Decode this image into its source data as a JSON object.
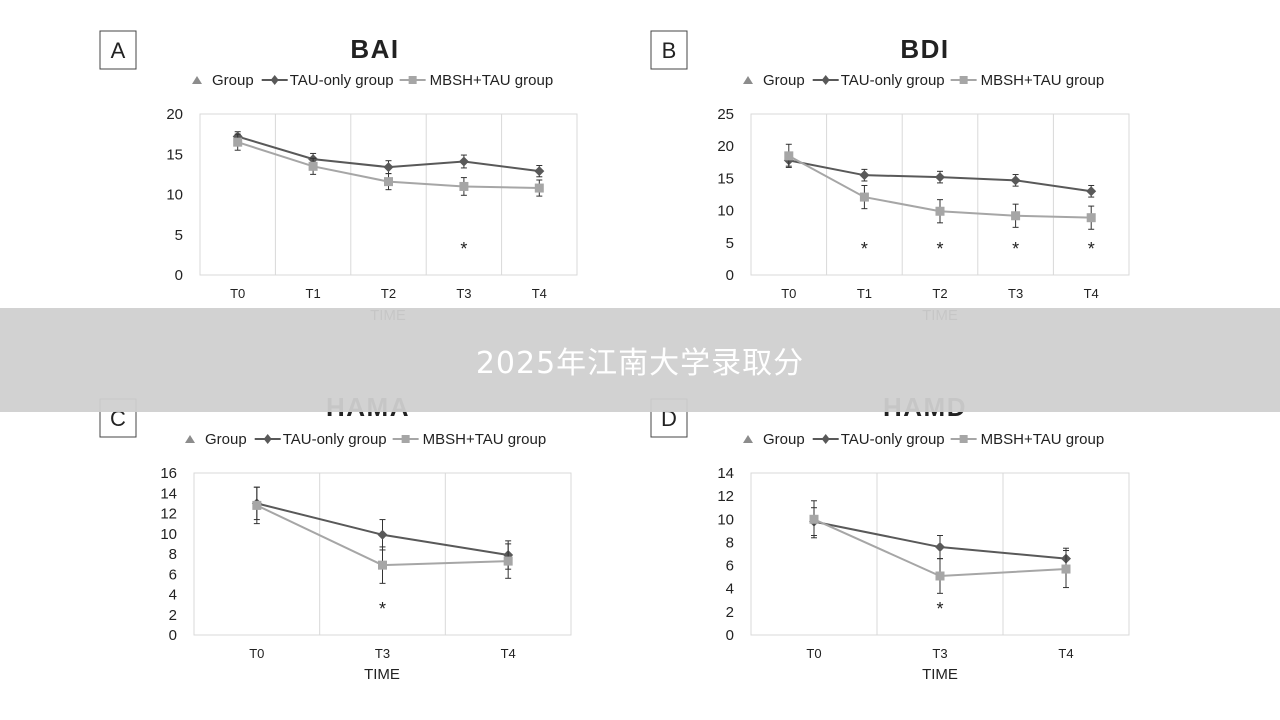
{
  "colors": {
    "tau": "#595959",
    "mbsh": "#a6a6a6",
    "group": "#8c8c8c",
    "grid": "#d9d9d9",
    "text": "#222222"
  },
  "overlay": {
    "text": "2025年江南大学录取分"
  },
  "chart_data": [
    {
      "panel": "A",
      "type": "line",
      "title": "BAI",
      "xlabel": "TIME",
      "categories": [
        "T0",
        "T1",
        "T2",
        "T3",
        "T4"
      ],
      "ylim": [
        0,
        20
      ],
      "yticks": [
        0,
        5,
        10,
        15,
        20
      ],
      "legend": [
        "Group",
        "TAU-only group",
        "MBSH+TAU group"
      ],
      "series": [
        {
          "name": "TAU-only group",
          "values": [
            17.2,
            14.4,
            13.4,
            14.1,
            12.9
          ],
          "errors": [
            0.6,
            0.7,
            0.8,
            0.8,
            0.7
          ]
        },
        {
          "name": "MBSH+TAU group",
          "values": [
            16.5,
            13.5,
            11.6,
            11.0,
            10.8
          ],
          "errors": [
            1.0,
            1.0,
            1.0,
            1.1,
            1.0
          ]
        }
      ],
      "significance": [
        "",
        "",
        "",
        "*",
        ""
      ]
    },
    {
      "panel": "B",
      "type": "line",
      "title": "BDI",
      "xlabel": "TIME",
      "categories": [
        "T0",
        "T1",
        "T2",
        "T3",
        "T4"
      ],
      "ylim": [
        0,
        25
      ],
      "yticks": [
        0,
        5,
        10,
        15,
        20,
        25
      ],
      "legend": [
        "Group",
        "TAU-only group",
        "MBSH+TAU group"
      ],
      "series": [
        {
          "name": "TAU-only group",
          "values": [
            17.8,
            15.5,
            15.2,
            14.7,
            13.0
          ],
          "errors": [
            0.9,
            0.9,
            0.9,
            0.9,
            0.9
          ]
        },
        {
          "name": "MBSH+TAU group",
          "values": [
            18.5,
            12.1,
            9.9,
            9.2,
            8.9
          ],
          "errors": [
            1.8,
            1.8,
            1.8,
            1.8,
            1.8
          ]
        }
      ],
      "significance": [
        "",
        "*",
        "*",
        "*",
        "*"
      ]
    },
    {
      "panel": "C",
      "type": "line",
      "title": "HAMA",
      "xlabel": "TIME",
      "categories": [
        "T0",
        "T3",
        "T4"
      ],
      "ylim": [
        0,
        16
      ],
      "yticks": [
        0,
        2,
        4,
        6,
        8,
        10,
        12,
        14,
        16
      ],
      "legend": [
        "Group",
        "TAU-only group",
        "MBSH+TAU group"
      ],
      "series": [
        {
          "name": "TAU-only group",
          "values": [
            13.0,
            9.9,
            7.9
          ],
          "errors": [
            1.6,
            1.5,
            1.4
          ]
        },
        {
          "name": "MBSH+TAU group",
          "values": [
            12.8,
            6.9,
            7.3
          ],
          "errors": [
            1.8,
            1.8,
            1.7
          ]
        }
      ],
      "significance": [
        "",
        "*",
        ""
      ]
    },
    {
      "panel": "D",
      "type": "line",
      "title": "HAMD",
      "xlabel": "TIME",
      "categories": [
        "T0",
        "T3",
        "T4"
      ],
      "ylim": [
        0,
        14
      ],
      "yticks": [
        0,
        2,
        4,
        6,
        8,
        10,
        12,
        14
      ],
      "legend": [
        "Group",
        "TAU-only group",
        "MBSH+TAU group"
      ],
      "series": [
        {
          "name": "TAU-only group",
          "values": [
            9.8,
            7.6,
            6.6
          ],
          "errors": [
            1.2,
            1.0,
            0.9
          ]
        },
        {
          "name": "MBSH+TAU group",
          "values": [
            10.0,
            5.1,
            5.7
          ],
          "errors": [
            1.6,
            1.5,
            1.6
          ]
        }
      ],
      "significance": [
        "",
        "*",
        ""
      ]
    }
  ]
}
